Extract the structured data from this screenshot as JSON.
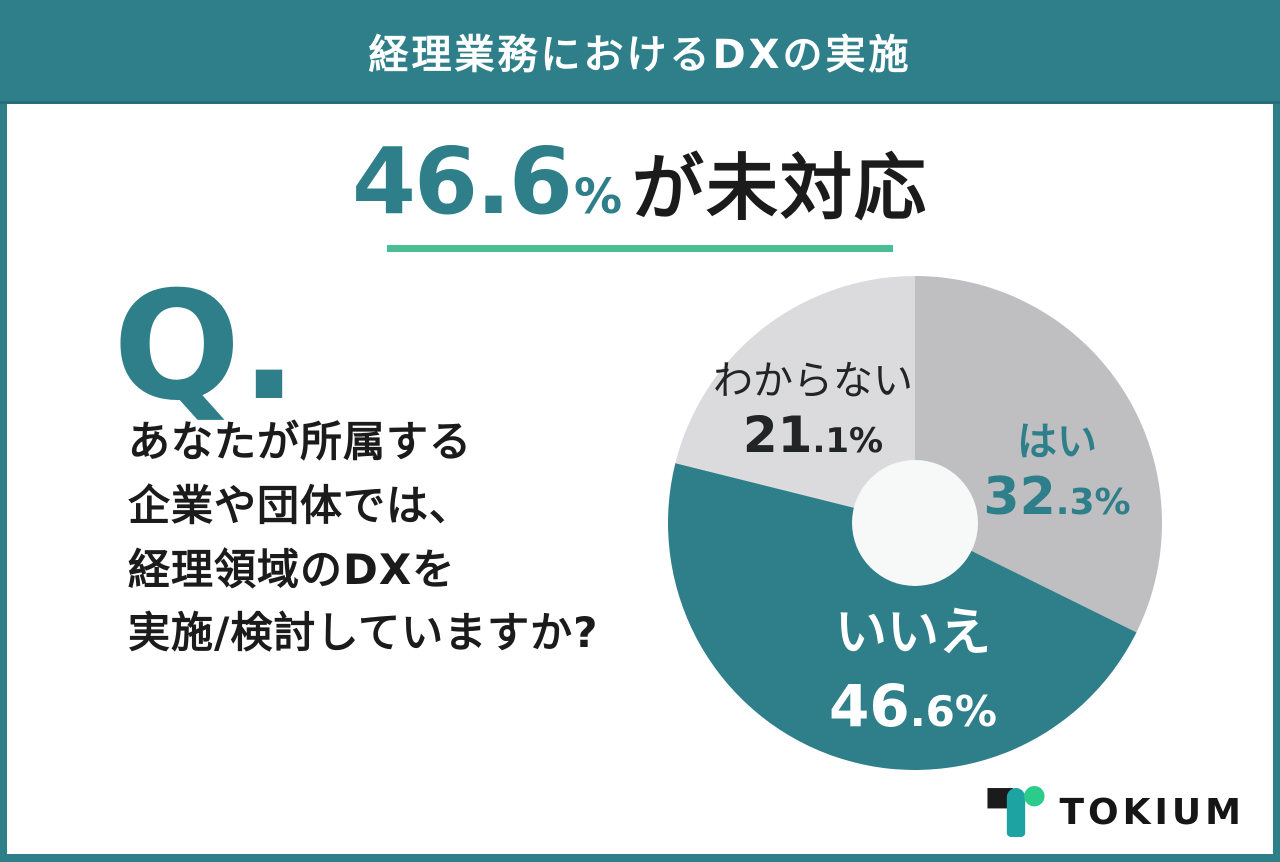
{
  "banner": {
    "title": "経理業務におけるDXの実施"
  },
  "headline": {
    "value": "46.6",
    "percent_sign": "%",
    "suffix": "が未対応"
  },
  "question": {
    "mark": "Q.",
    "lines": [
      "あなたが所属する",
      "企業や団体では、",
      "経理領域のDXを",
      "実施/検討していますか?"
    ]
  },
  "chart_data": {
    "type": "pie",
    "subtype": "donut",
    "title": "経理業務におけるDXの実施",
    "categories": [
      "はい",
      "いいえ",
      "わからない"
    ],
    "values": [
      32.3,
      46.6,
      21.1
    ],
    "unit": "%",
    "start_angle_deg": 0,
    "direction": "clockwise",
    "colors": [
      "#BFBEC0",
      "#2E7F8A",
      "#DBDBDD"
    ],
    "hole_color": "#F7F8F8",
    "inner_radius_ratio": 0.255,
    "legend_position": "inside",
    "slices": [
      {
        "label": "はい",
        "value": 32.3,
        "value_big": "32",
        "value_small": ".3%"
      },
      {
        "label": "いいえ",
        "value": 46.6,
        "value_big": "46",
        "value_small": ".6%"
      },
      {
        "label": "わからない",
        "value": 21.1,
        "value_big": "21",
        "value_small": ".1%"
      }
    ]
  },
  "logo": {
    "text": "TOKIUM"
  },
  "colors": {
    "teal": "#2E7F8A",
    "underline_green": "#4CBE95",
    "text_black": "#1B1B1B",
    "logo_teal": "#1EA3A3",
    "logo_green": "#2BCB8C"
  }
}
